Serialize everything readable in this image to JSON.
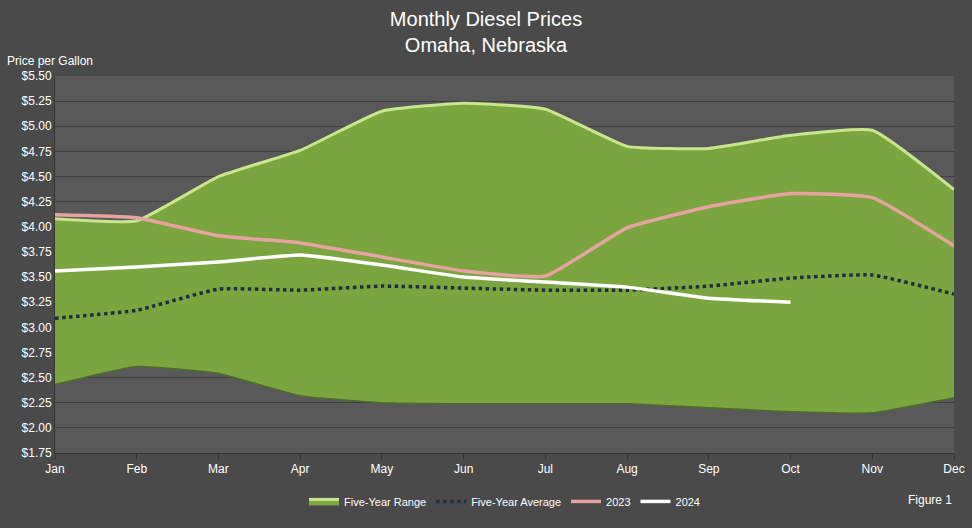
{
  "chart_data": {
    "type": "line",
    "title": "Monthly Diesel Prices",
    "subtitle": "Omaha, Nebraska",
    "y_label": "Price per Gallon",
    "annotations": [
      "Figure 1"
    ],
    "categories": [
      "Jan",
      "Feb",
      "Mar",
      "Apr",
      "May",
      "Jun",
      "Jul",
      "Aug",
      "Sep",
      "Oct",
      "Nov",
      "Dec"
    ],
    "series": [
      {
        "name": "Five-Year Range",
        "type": "range",
        "color": "#7aa53f",
        "low": [
          2.43,
          2.61,
          2.54,
          2.32,
          2.25,
          2.24,
          2.24,
          2.24,
          2.2,
          2.16,
          2.15,
          2.3
        ],
        "high": [
          4.08,
          4.06,
          4.5,
          4.76,
          5.15,
          5.23,
          5.17,
          4.8,
          4.78,
          4.91,
          4.96,
          4.37
        ]
      },
      {
        "name": "Five-Year Average",
        "type": "line",
        "color": "#1f2f3f",
        "line_style": "dotted",
        "values": [
          3.09,
          3.17,
          3.38,
          3.37,
          3.41,
          3.39,
          3.37,
          3.37,
          3.41,
          3.49,
          3.52,
          3.33
        ]
      },
      {
        "name": "2023",
        "type": "line",
        "color": "#e6a3a0",
        "line_style": "solid",
        "values": [
          4.12,
          4.09,
          3.91,
          3.84,
          3.7,
          3.56,
          3.51,
          3.99,
          4.2,
          4.33,
          4.29,
          3.81
        ]
      },
      {
        "name": "2024",
        "type": "line",
        "color": "#ffffff",
        "line_style": "solid",
        "values": [
          3.56,
          3.6,
          3.65,
          3.72,
          3.62,
          3.5,
          3.45,
          3.4,
          3.29,
          3.25,
          null,
          null
        ]
      }
    ],
    "ylim": [
      1.75,
      5.5
    ],
    "yticks": [
      {
        "value": 1.75,
        "label": "$1.75"
      },
      {
        "value": 2.0,
        "label": "$2.00"
      },
      {
        "value": 2.25,
        "label": "$2.25"
      },
      {
        "value": 2.5,
        "label": "$2.50"
      },
      {
        "value": 2.75,
        "label": "$2.75"
      },
      {
        "value": 3.0,
        "label": "$3.00"
      },
      {
        "value": 3.25,
        "label": "$3.25"
      },
      {
        "value": 3.5,
        "label": "$3.50"
      },
      {
        "value": 3.75,
        "label": "$3.75"
      },
      {
        "value": 4.0,
        "label": "$4.00"
      },
      {
        "value": 4.25,
        "label": "$4.25"
      },
      {
        "value": 4.5,
        "label": "$4.50"
      },
      {
        "value": 4.75,
        "label": "$4.75"
      },
      {
        "value": 5.0,
        "label": "$5.00"
      },
      {
        "value": 5.25,
        "label": "$5.25"
      },
      {
        "value": 5.5,
        "label": "$5.50"
      }
    ],
    "grid": true,
    "legend": "bottom"
  }
}
